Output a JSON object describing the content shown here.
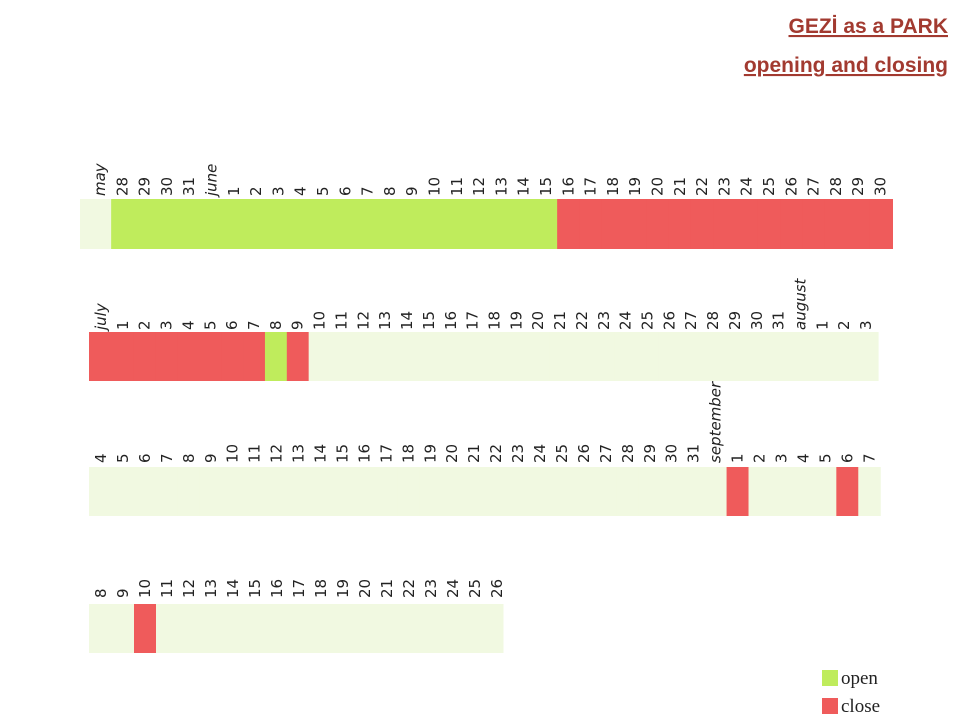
{
  "chart_data": {
    "type": "timeline",
    "title": "GEZİ as a PARK",
    "subtitle": "opening and closing",
    "legend": [
      {
        "label": "open",
        "color": "#bfec5c"
      },
      {
        "label": "close",
        "color": "#ef5b5b"
      }
    ],
    "empty_color": "#f1f9e1",
    "rows": [
      {
        "labels": [
          "may",
          "28",
          "29",
          "30",
          "31",
          "june",
          "1",
          "2",
          "3",
          "4",
          "5",
          "6",
          "7",
          "8",
          "9",
          "10",
          "11",
          "12",
          "13",
          "14",
          "15",
          "16",
          "17",
          "18",
          "19",
          "20",
          "21",
          "22",
          "23",
          "24",
          "25",
          "26",
          "27",
          "28",
          "29",
          "30"
        ],
        "states": [
          null,
          0,
          0,
          0,
          0,
          0,
          0,
          0,
          0,
          0,
          0,
          0,
          0,
          0,
          0,
          0,
          0,
          0,
          0,
          0,
          0,
          1,
          1,
          1,
          1,
          1,
          1,
          1,
          1,
          1,
          1,
          1,
          1,
          1,
          1,
          1
        ]
      },
      {
        "labels": [
          "july",
          "1",
          "2",
          "3",
          "4",
          "5",
          "6",
          "7",
          "8",
          "9",
          "10",
          "11",
          "12",
          "13",
          "14",
          "15",
          "16",
          "17",
          "18",
          "19",
          "20",
          "21",
          "22",
          "23",
          "24",
          "25",
          "26",
          "27",
          "28",
          "29",
          "30",
          "31",
          "august",
          "1",
          "2",
          "3"
        ],
        "states": [
          1,
          1,
          1,
          1,
          1,
          1,
          1,
          1,
          0,
          1,
          null,
          null,
          null,
          null,
          null,
          null,
          null,
          null,
          null,
          null,
          null,
          null,
          null,
          null,
          null,
          null,
          null,
          null,
          null,
          null,
          null,
          null,
          null,
          null,
          null,
          null
        ]
      },
      {
        "labels": [
          "4",
          "5",
          "6",
          "7",
          "8",
          "9",
          "10",
          "11",
          "12",
          "13",
          "14",
          "15",
          "16",
          "17",
          "18",
          "19",
          "20",
          "21",
          "22",
          "23",
          "24",
          "25",
          "26",
          "27",
          "28",
          "29",
          "30",
          "31",
          "september",
          "1",
          "2",
          "3",
          "4",
          "5",
          "6",
          "7"
        ],
        "states": [
          null,
          null,
          null,
          null,
          null,
          null,
          null,
          null,
          null,
          null,
          null,
          null,
          null,
          null,
          null,
          null,
          null,
          null,
          null,
          null,
          null,
          null,
          null,
          null,
          null,
          null,
          null,
          null,
          null,
          1,
          null,
          null,
          null,
          null,
          1,
          null
        ]
      },
      {
        "labels": [
          "8",
          "9",
          "10",
          "11",
          "12",
          "13",
          "14",
          "15",
          "16",
          "17",
          "18",
          "19",
          "20",
          "21",
          "22",
          "23",
          "24",
          "25",
          "26"
        ],
        "states": [
          null,
          null,
          1,
          null,
          null,
          null,
          null,
          null,
          null,
          null,
          null,
          null,
          null,
          null,
          null,
          null,
          null,
          null,
          null
        ]
      }
    ]
  }
}
